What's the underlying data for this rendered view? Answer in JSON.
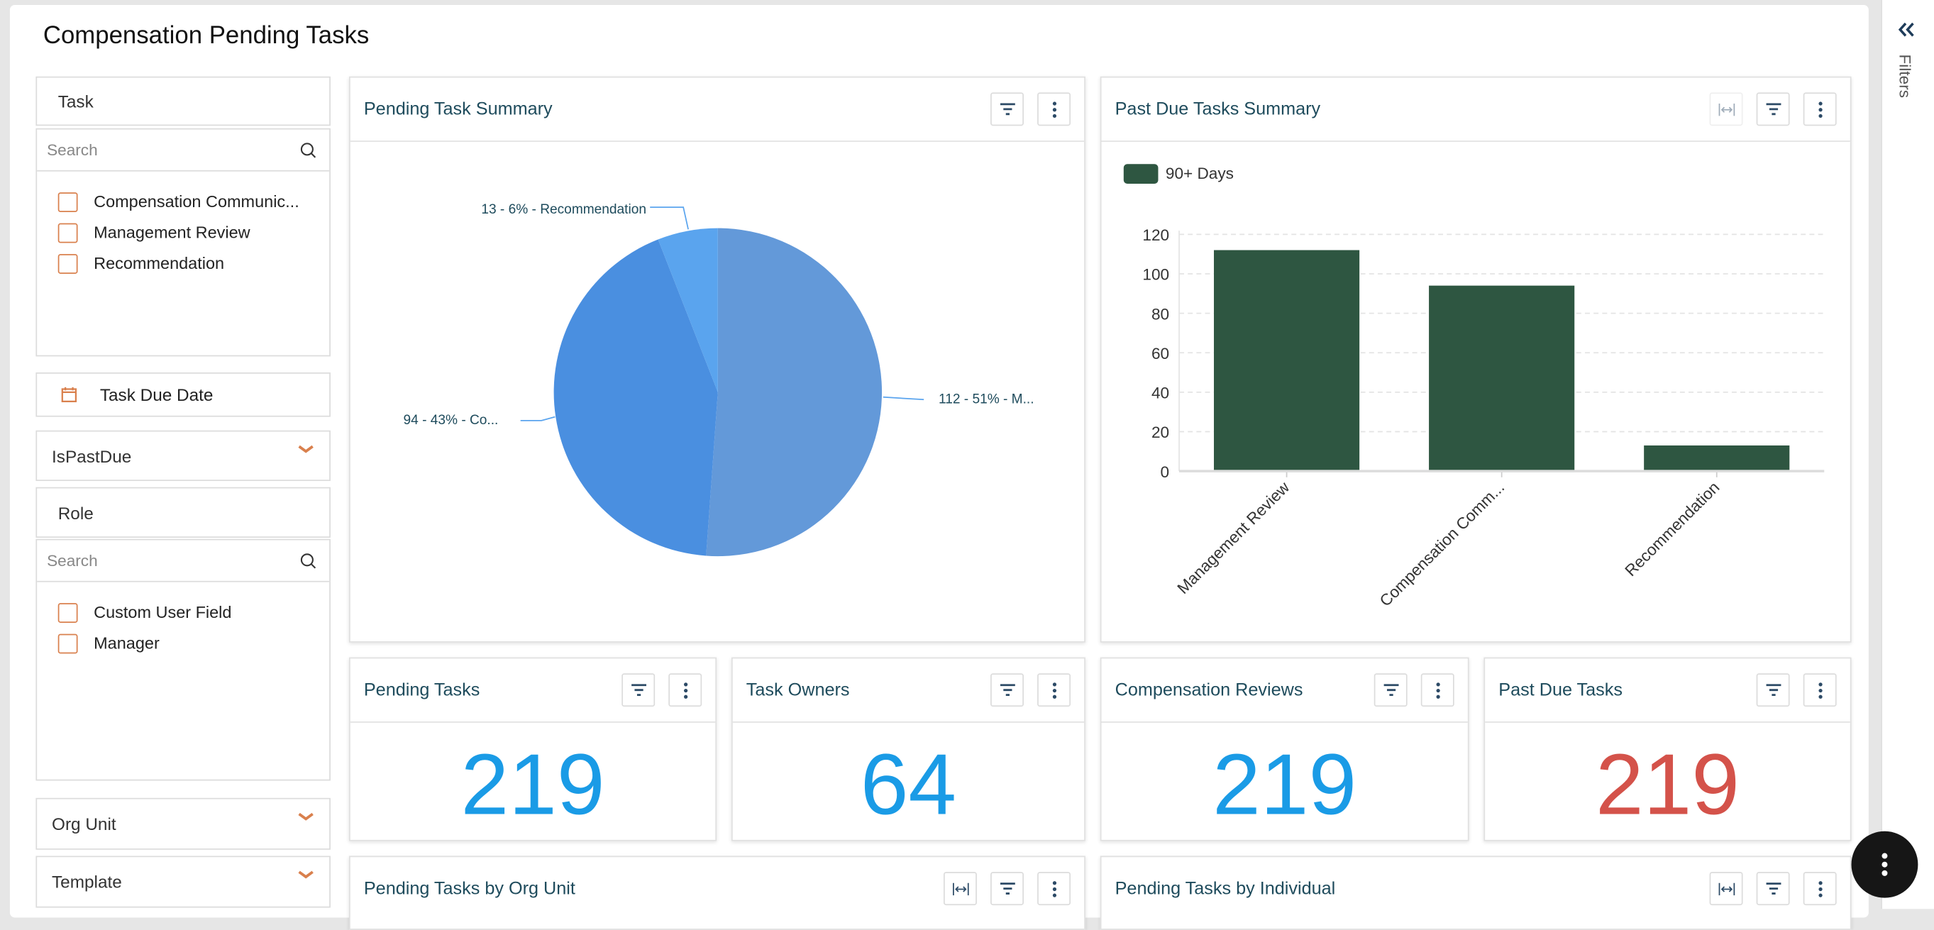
{
  "page": {
    "title": "Compensation Pending Tasks"
  },
  "filters": {
    "task": {
      "label": "Task",
      "search_placeholder": "Search",
      "options": [
        "Compensation Communic...",
        "Management Review",
        "Recommendation"
      ]
    },
    "task_due_date": {
      "label": "Task Due Date"
    },
    "is_past_due": {
      "label": "IsPastDue"
    },
    "role": {
      "label": "Role",
      "search_placeholder": "Search",
      "options": [
        "Custom User Field",
        "Manager"
      ]
    },
    "org_unit": {
      "label": "Org Unit"
    },
    "template": {
      "label": "Template"
    }
  },
  "filters_panel": {
    "label": "Filters",
    "collapse_icon": "double-chevron-left-icon"
  },
  "colors": {
    "accent_orange": "#d9804d",
    "title_teal": "#1e4b5c",
    "kpi_blue": "#1a9be6",
    "kpi_red": "#d4524a",
    "bar_green": "#2e5641"
  },
  "cards": {
    "pending_summary": {
      "title": "Pending Task Summary"
    },
    "past_due_summary": {
      "title": "Past Due Tasks Summary"
    },
    "kpis": [
      {
        "title": "Pending Tasks",
        "value": "219",
        "color": "#1a9be6"
      },
      {
        "title": "Task Owners",
        "value": "64",
        "color": "#1a9be6"
      },
      {
        "title": "Compensation Reviews",
        "value": "219",
        "color": "#1a9be6"
      },
      {
        "title": "Past Due Tasks",
        "value": "219",
        "color": "#d4524a"
      }
    ],
    "by_org_unit": {
      "title": "Pending Tasks by Org Unit"
    },
    "by_individual": {
      "title": "Pending Tasks by Individual"
    }
  },
  "chart_data": [
    {
      "type": "pie",
      "slices": [
        {
          "category": "Management Review",
          "value": 112,
          "percent": 51,
          "label": "112 - 51% - M...",
          "color": "#6399d9"
        },
        {
          "category": "Compensation Communication",
          "value": 94,
          "percent": 43,
          "label": "94 - 43% - Co...",
          "color": "#4a8fe0"
        },
        {
          "category": "Recommendation",
          "value": 13,
          "percent": 6,
          "label": "13 - 6% - Recommendation",
          "color": "#5aa4ee"
        }
      ]
    },
    {
      "type": "bar",
      "categories": [
        "Management Review",
        "Compensation Comm...",
        "Recommendation"
      ],
      "series": [
        {
          "name": "90+ Days",
          "values": [
            112,
            94,
            13
          ],
          "color": "#2e5641"
        }
      ],
      "ylim": [
        0,
        120
      ],
      "yticks": [
        0,
        20,
        40,
        60,
        80,
        100,
        120
      ],
      "grid": true,
      "legend": "top-left"
    }
  ]
}
